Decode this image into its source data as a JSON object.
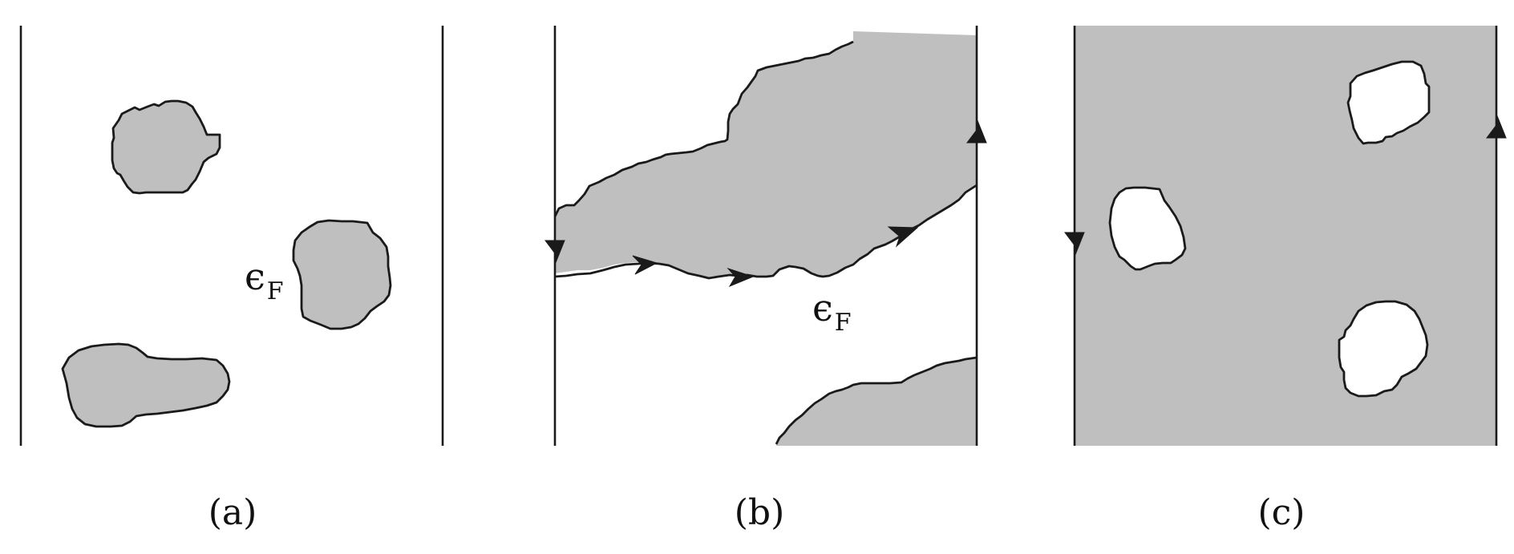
{
  "symbol": {
    "main": "ϵ",
    "sub": "F"
  },
  "panels": [
    {
      "label": "(a)"
    },
    {
      "label": "(b)"
    },
    {
      "label": "(c)"
    }
  ],
  "colors": {
    "filled": "#bfbfbf",
    "line": "#1a1a1a",
    "background": "#ffffff"
  }
}
